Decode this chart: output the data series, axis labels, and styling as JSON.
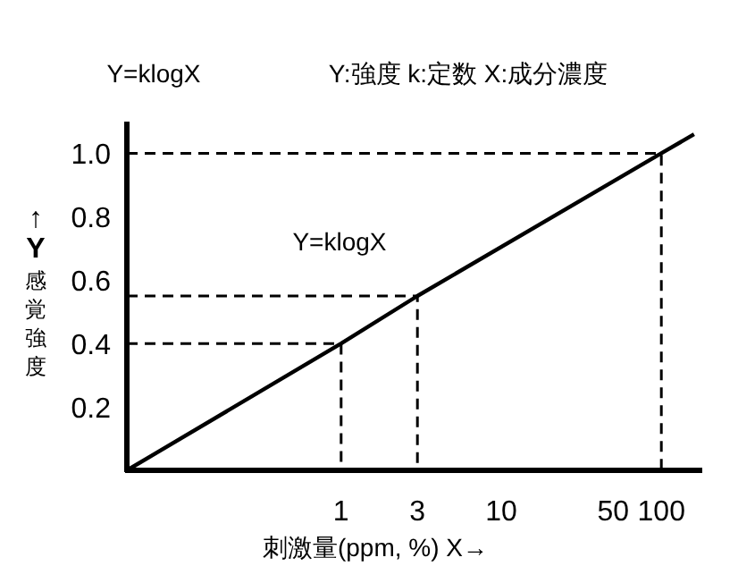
{
  "chart_data": {
    "type": "line",
    "title": "Y=klogX",
    "subtitle": "Y:強度 k:定数 X:成分濃度",
    "xlabel": "刺激量(ppm, %) X→",
    "ylabel": "↑Y感覚強度",
    "annotations": [
      "Y=klogX"
    ],
    "log": "x",
    "xlim": [
      0.046,
      180
    ],
    "xticks": [
      1,
      3,
      10,
      50,
      100
    ],
    "ylim": [
      0,
      1.1
    ],
    "yticks": [
      0.2,
      0.4,
      0.6,
      0.8,
      {
        "value": 1.0,
        "label": "1.0"
      }
    ],
    "grid": false,
    "marker": "none",
    "series": [
      {
        "color": "#000000",
        "line_style": "solid",
        "x": [
          0.046,
          1,
          3,
          100,
          160
        ],
        "values": [
          0,
          0.4,
          0.55,
          1.0,
          1.06
        ]
      },
      {
        "color": "#000000",
        "line_style": "dashed",
        "x": [
          0.046,
          1,
          1
        ],
        "values": [
          0.4,
          0.4,
          0
        ]
      },
      {
        "color": "#000000",
        "line_style": "dashed",
        "x": [
          0.046,
          3,
          3
        ],
        "values": [
          0.55,
          0.55,
          0
        ]
      },
      {
        "color": "#000000",
        "line_style": "dashed",
        "x": [
          0.046,
          100,
          100
        ],
        "values": [
          1.0,
          1.0,
          0
        ]
      }
    ]
  }
}
